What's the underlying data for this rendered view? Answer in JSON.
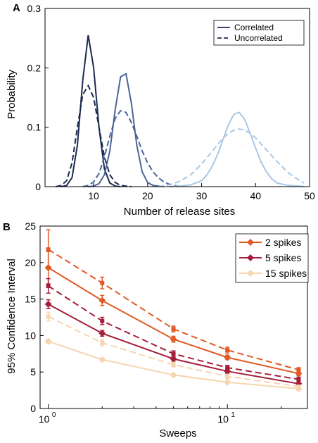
{
  "panel_a_letter": "A",
  "panel_b_letter": "B",
  "chart_data": [
    {
      "type": "line",
      "panel": "A",
      "xlabel": "Number of release sites",
      "ylabel": "Probability",
      "xlim": [
        1,
        50
      ],
      "ylim": [
        0,
        0.3
      ],
      "xticks": [
        10,
        20,
        30,
        40,
        50
      ],
      "yticks": [
        0,
        0.1,
        0.2,
        0.3
      ],
      "ytick_labels": [
        "0",
        "0.1",
        "0.2",
        "0.3"
      ],
      "grid": false,
      "legend_position": "top-right",
      "legend": [
        {
          "label": "Correlated",
          "style": "solid"
        },
        {
          "label": "Uncorrelated",
          "style": "dashed"
        }
      ],
      "groups": [
        {
          "color": "#1b2a4e",
          "correlated": {
            "x": [
              4,
              5,
              6,
              7,
              8,
              9,
              10,
              11,
              12,
              13,
              14,
              15
            ],
            "y": [
              0,
              0.002,
              0.015,
              0.07,
              0.18,
              0.255,
              0.2,
              0.1,
              0.03,
              0.006,
              0.001,
              0
            ]
          },
          "uncorrelated": {
            "x": [
              3,
              4,
              5,
              6,
              7,
              8,
              9,
              10,
              11,
              12,
              13,
              14,
              15,
              16,
              17
            ],
            "y": [
              0,
              0.002,
              0.01,
              0.04,
              0.1,
              0.155,
              0.17,
              0.15,
              0.1,
              0.05,
              0.02,
              0.007,
              0.002,
              0.001,
              0
            ]
          }
        },
        {
          "color": "#4a6596",
          "correlated": {
            "x": [
              9,
              10,
              11,
              12,
              13,
              14,
              15,
              16,
              17,
              18,
              19,
              20,
              21,
              22,
              23
            ],
            "y": [
              0,
              0.001,
              0.005,
              0.02,
              0.06,
              0.13,
              0.185,
              0.19,
              0.14,
              0.07,
              0.025,
              0.007,
              0.002,
              0.001,
              0
            ]
          },
          "uncorrelated": {
            "x": [
              8,
              9,
              10,
              11,
              12,
              13,
              14,
              15,
              16,
              17,
              18,
              19,
              20,
              21,
              22,
              23,
              24,
              25,
              26
            ],
            "y": [
              0,
              0.002,
              0.008,
              0.022,
              0.05,
              0.085,
              0.115,
              0.128,
              0.125,
              0.108,
              0.085,
              0.06,
              0.04,
              0.025,
              0.015,
              0.008,
              0.004,
              0.002,
              0
            ]
          }
        },
        {
          "color": "#a9c8e6",
          "correlated": {
            "x": [
              24,
              26,
              28,
              30,
              31,
              32,
              33,
              34,
              35,
              36,
              37,
              38,
              39,
              40,
              41,
              42,
              43,
              44,
              46,
              48,
              49
            ],
            "y": [
              0,
              0.001,
              0.003,
              0.01,
              0.02,
              0.035,
              0.055,
              0.08,
              0.105,
              0.122,
              0.125,
              0.113,
              0.09,
              0.065,
              0.042,
              0.025,
              0.013,
              0.006,
              0.002,
              0.001,
              0
            ]
          },
          "uncorrelated": {
            "x": [
              22,
              24,
              26,
              28,
              30,
              32,
              34,
              35,
              36,
              37,
              38,
              39,
              40,
              42,
              44,
              46,
              48,
              49
            ],
            "y": [
              0,
              0.003,
              0.009,
              0.02,
              0.038,
              0.06,
              0.082,
              0.09,
              0.095,
              0.097,
              0.095,
              0.09,
              0.082,
              0.062,
              0.042,
              0.024,
              0.011,
              0.006
            ]
          }
        }
      ]
    },
    {
      "type": "line",
      "panel": "B",
      "xlabel": "Sweeps",
      "ylabel": "95% Confidence Interval",
      "xscale": "log",
      "xlim": [
        0.9,
        28
      ],
      "ylim": [
        0,
        25
      ],
      "yticks": [
        0,
        5,
        10,
        15,
        20,
        25
      ],
      "xtick_labels": [
        {
          "base": "10",
          "exp": "0"
        },
        {
          "base": "10",
          "exp": "1"
        }
      ],
      "grid": false,
      "legend_position": "top-right",
      "x": [
        1,
        2,
        5,
        10,
        25
      ],
      "series": [
        {
          "name": "2 spikes",
          "color": "#e05a25",
          "correlated": [
            19.3,
            14.8,
            9.5,
            7.0,
            4.8
          ],
          "correlated_err": [
            2.2,
            0.7,
            0.4,
            0.3,
            0.3
          ],
          "uncorrelated": [
            21.8,
            17.2,
            10.9,
            8.0,
            5.3
          ],
          "uncorrelated_err": [
            2.7,
            0.8,
            0.4,
            0.4,
            0.3
          ]
        },
        {
          "name": "5 spikes",
          "color": "#a51e3a",
          "correlated": [
            14.3,
            10.3,
            6.8,
            5.1,
            3.4
          ],
          "correlated_err": [
            0.6,
            0.4,
            0.3,
            0.3,
            0.3
          ],
          "uncorrelated": [
            16.8,
            12.0,
            7.5,
            5.6,
            4.0
          ],
          "uncorrelated_err": [
            1.0,
            0.5,
            0.4,
            0.3,
            0.3
          ]
        },
        {
          "name": "15 spikes",
          "color": "#f5d6b0",
          "correlated": [
            9.2,
            6.7,
            4.6,
            3.6,
            2.7
          ],
          "correlated_err": [
            0.3,
            0.2,
            0.2,
            0.2,
            0.2
          ],
          "uncorrelated": [
            12.6,
            9.0,
            6.0,
            4.4,
            3.0
          ],
          "uncorrelated_err": [
            0.6,
            0.4,
            0.3,
            0.3,
            0.2
          ]
        }
      ]
    }
  ]
}
